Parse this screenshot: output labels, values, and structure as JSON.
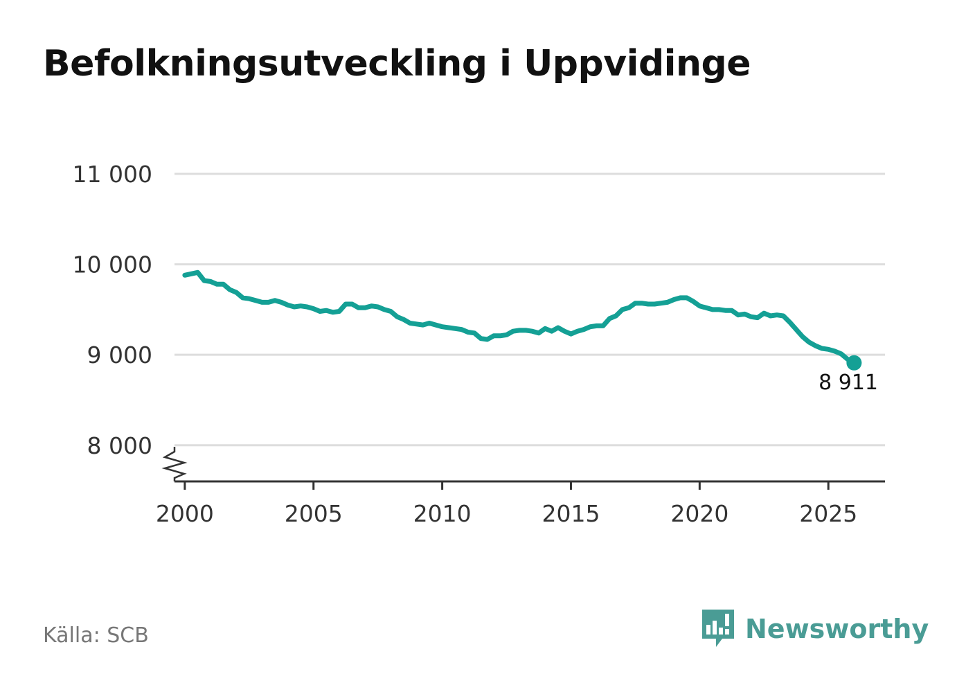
{
  "title": "Befolkningsutveckling i Uppvidinge",
  "source": "Källa: SCB",
  "brand": {
    "name": "Newsworthy",
    "icon": "newsworthy-logo-icon",
    "color": "#4a9c95"
  },
  "colors": {
    "line": "#14a095",
    "grid": "#dddddd",
    "axis": "#333333"
  },
  "chart_data": {
    "type": "line",
    "title": "Befolkningsutveckling i Uppvidinge",
    "xlabel": "",
    "ylabel": "",
    "xlim": [
      1999.6,
      2027.2
    ],
    "ylim": [
      7600,
      11000
    ],
    "axis_break": true,
    "grid": "horizontal",
    "x_ticks": [
      {
        "value": 2000,
        "label": "2000"
      },
      {
        "value": 2005,
        "label": "2005"
      },
      {
        "value": 2010,
        "label": "2010"
      },
      {
        "value": 2015,
        "label": "2015"
      },
      {
        "value": 2020,
        "label": "2020"
      },
      {
        "value": 2025,
        "label": "2025"
      }
    ],
    "y_ticks": [
      {
        "value": 8000,
        "label": "8 000"
      },
      {
        "value": 9000,
        "label": "9 000"
      },
      {
        "value": 10000,
        "label": "10 000"
      },
      {
        "value": 11000,
        "label": "11 000"
      }
    ],
    "last_point_label": "8 911",
    "x": [
      2000.0,
      2000.5,
      2000.75,
      2001.0,
      2001.25,
      2001.5,
      2001.75,
      2002.0,
      2002.25,
      2002.5,
      2002.75,
      2003.0,
      2003.25,
      2003.5,
      2003.75,
      2004.0,
      2004.25,
      2004.5,
      2004.75,
      2005.0,
      2005.25,
      2005.5,
      2005.75,
      2006.0,
      2006.25,
      2006.5,
      2006.75,
      2007.0,
      2007.25,
      2007.5,
      2007.75,
      2008.0,
      2008.25,
      2008.5,
      2008.75,
      2009.0,
      2009.25,
      2009.5,
      2009.75,
      2010.0,
      2010.25,
      2010.5,
      2010.75,
      2011.0,
      2011.25,
      2011.5,
      2011.75,
      2012.0,
      2012.25,
      2012.5,
      2012.75,
      2013.0,
      2013.25,
      2013.5,
      2013.75,
      2014.0,
      2014.25,
      2014.5,
      2014.75,
      2015.0,
      2015.25,
      2015.5,
      2015.75,
      2016.0,
      2016.25,
      2016.5,
      2016.75,
      2017.0,
      2017.25,
      2017.5,
      2017.75,
      2018.0,
      2018.25,
      2018.5,
      2018.75,
      2019.0,
      2019.25,
      2019.5,
      2019.75,
      2020.0,
      2020.25,
      2020.5,
      2020.75,
      2021.0,
      2021.25,
      2021.5,
      2021.75,
      2022.0,
      2022.25,
      2022.5,
      2022.75,
      2023.0,
      2023.25,
      2023.5,
      2023.75,
      2024.0,
      2024.25,
      2024.5,
      2024.75,
      2025.0,
      2025.25,
      2025.5,
      2025.75,
      2026.0
    ],
    "series": [
      {
        "values": [
          9880,
          9910,
          9820,
          9810,
          9780,
          9780,
          9720,
          9690,
          9630,
          9620,
          9600,
          9580,
          9580,
          9600,
          9580,
          9550,
          9530,
          9540,
          9530,
          9510,
          9480,
          9490,
          9470,
          9480,
          9560,
          9560,
          9520,
          9520,
          9540,
          9530,
          9500,
          9480,
          9420,
          9390,
          9350,
          9340,
          9330,
          9350,
          9330,
          9310,
          9300,
          9290,
          9280,
          9250,
          9240,
          9180,
          9170,
          9210,
          9210,
          9220,
          9260,
          9270,
          9270,
          9260,
          9240,
          9290,
          9260,
          9300,
          9260,
          9230,
          9260,
          9280,
          9310,
          9320,
          9320,
          9400,
          9430,
          9500,
          9520,
          9570,
          9570,
          9560,
          9560,
          9570,
          9580,
          9610,
          9630,
          9630,
          9590,
          9540,
          9520,
          9500,
          9500,
          9490,
          9490,
          9440,
          9450,
          9420,
          9410,
          9460,
          9430,
          9440,
          9430,
          9360,
          9280,
          9200,
          9140,
          9100,
          9070,
          9060,
          9040,
          9010,
          8950,
          8911
        ]
      }
    ]
  }
}
